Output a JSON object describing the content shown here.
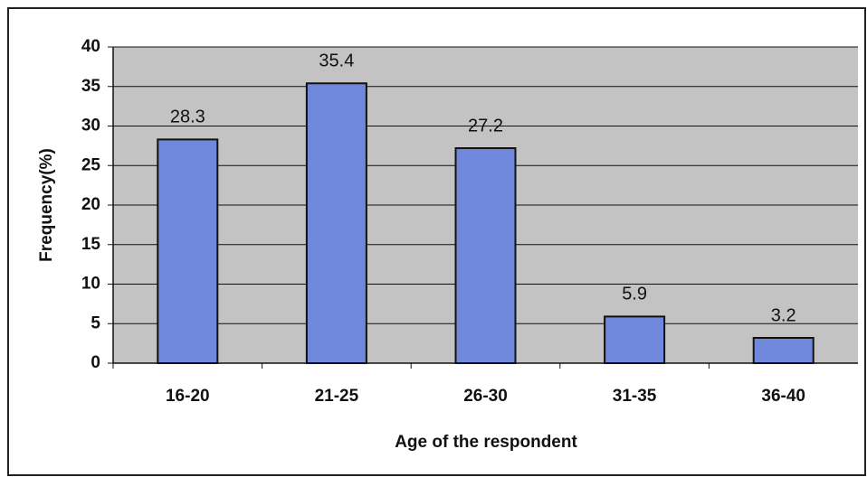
{
  "chart_data": {
    "type": "bar",
    "categories": [
      "16-20",
      "21-25",
      "26-30",
      "31-35",
      "36-40"
    ],
    "values": [
      28.3,
      35.4,
      27.2,
      5.9,
      3.2
    ],
    "color": "#7088dc",
    "xlabel": "Age of the respondent",
    "ylabel": "Frequency(%)",
    "ylim": [
      0,
      40
    ],
    "yticks": [
      0,
      5,
      10,
      15,
      20,
      25,
      30,
      35,
      40
    ],
    "grid": true
  }
}
